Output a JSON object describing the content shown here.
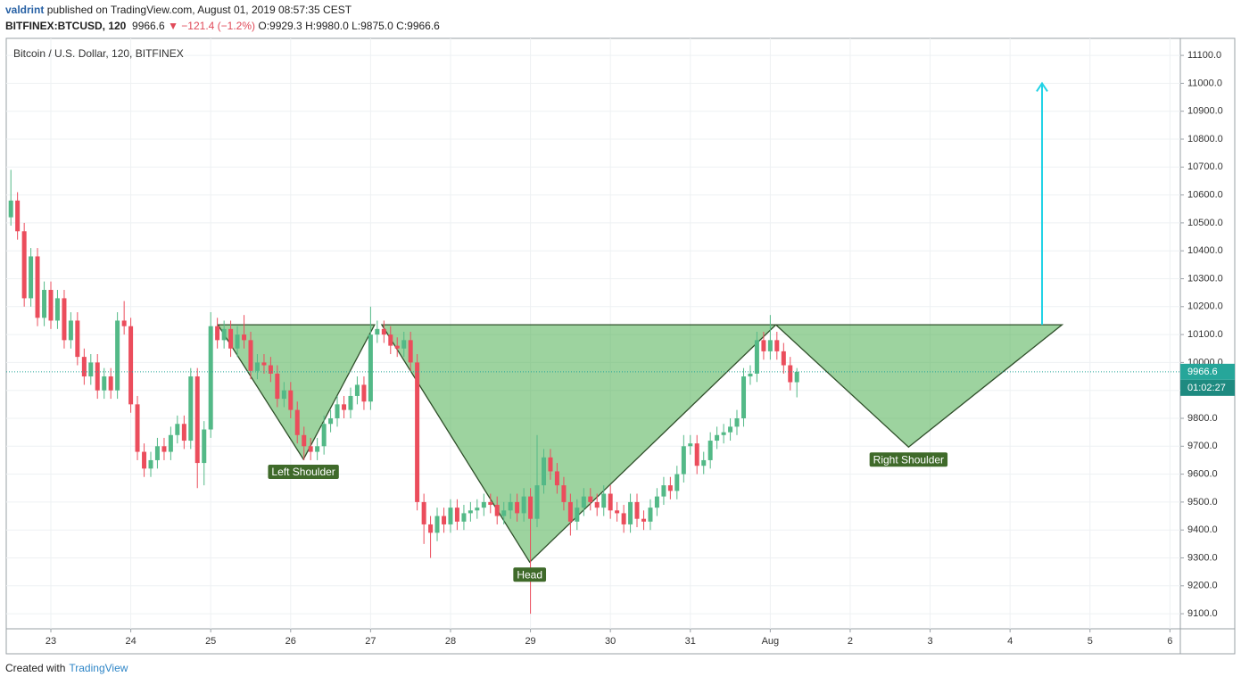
{
  "header": {
    "author": "valdrint",
    "published": "published on TradingView.com, August 01, 2019 08:57:35 CEST",
    "symbol": "BITFINEX:BTCUSD, 120",
    "last": "9966.6",
    "change": "▼ −121.4 (−1.2%)",
    "ohlc": "O:9929.3 H:9980.0 L:9875.0 C:9966.6"
  },
  "footer": {
    "created": "Created with",
    "brand": "TradingView"
  },
  "chart_data": {
    "type": "candlestick",
    "title": "Bitcoin / U.S. Dollar, 120, BITFINEX",
    "up_color": "#53b987",
    "down_color": "#eb4d5c",
    "grid": true,
    "countdown": "01:02:27",
    "last_label": "9966.6",
    "xlim": [
      -0.558,
      14.13
    ],
    "ylim": [
      9046,
      11161
    ],
    "xticks": [
      {
        "value": 0,
        "label": "23"
      },
      {
        "value": 1,
        "label": "24"
      },
      {
        "value": 2,
        "label": "25"
      },
      {
        "value": 3,
        "label": "26"
      },
      {
        "value": 4,
        "label": "27"
      },
      {
        "value": 5,
        "label": "28"
      },
      {
        "value": 6,
        "label": "29"
      },
      {
        "value": 7,
        "label": "30"
      },
      {
        "value": 8,
        "label": "31"
      },
      {
        "value": 9,
        "label": "Aug"
      },
      {
        "value": 10,
        "label": "2"
      },
      {
        "value": 11,
        "label": "3"
      },
      {
        "value": 12,
        "label": "4"
      },
      {
        "value": 13,
        "label": "5"
      },
      {
        "value": 14,
        "label": "6"
      }
    ],
    "yticks": [
      {
        "value": 9100,
        "label": "9100.0"
      },
      {
        "value": 9200,
        "label": "9200.0"
      },
      {
        "value": 9300,
        "label": "9300.0"
      },
      {
        "value": 9400,
        "label": "9400.0"
      },
      {
        "value": 9500,
        "label": "9500.0"
      },
      {
        "value": 9600,
        "label": "9600.0"
      },
      {
        "value": 9700,
        "label": "9700.0"
      },
      {
        "value": 9800,
        "label": "9800.0"
      },
      {
        "value": 9900,
        "label": "9900.0"
      },
      {
        "value": 10000,
        "label": "10000.0"
      },
      {
        "value": 10100,
        "label": "10100.0"
      },
      {
        "value": 10200,
        "label": "10200.0"
      },
      {
        "value": 10300,
        "label": "10300.0"
      },
      {
        "value": 10400,
        "label": "10400.0"
      },
      {
        "value": 10500,
        "label": "10500.0"
      },
      {
        "value": 10600,
        "label": "10600.0"
      },
      {
        "value": 10700,
        "label": "10700.0"
      },
      {
        "value": 10800,
        "label": "10800.0"
      },
      {
        "value": 10900,
        "label": "10900.0"
      },
      {
        "value": 11000,
        "label": "11000.0"
      },
      {
        "value": 11100,
        "label": "11100.0"
      }
    ],
    "x": [
      -0.5,
      -0.417,
      -0.333,
      -0.25,
      -0.167,
      -0.083,
      0,
      0.083,
      0.167,
      0.25,
      0.333,
      0.417,
      0.5,
      0.583,
      0.667,
      0.75,
      0.833,
      0.917,
      1,
      1.083,
      1.167,
      1.25,
      1.333,
      1.417,
      1.5,
      1.583,
      1.667,
      1.75,
      1.833,
      1.917,
      2,
      2.083,
      2.167,
      2.25,
      2.333,
      2.417,
      2.5,
      2.583,
      2.667,
      2.75,
      2.833,
      2.917,
      3,
      3.083,
      3.167,
      3.25,
      3.333,
      3.417,
      3.5,
      3.583,
      3.667,
      3.75,
      3.833,
      3.917,
      4,
      4.083,
      4.167,
      4.25,
      4.333,
      4.417,
      4.5,
      4.583,
      4.667,
      4.75,
      4.833,
      4.917,
      5,
      5.083,
      5.167,
      5.25,
      5.333,
      5.417,
      5.5,
      5.583,
      5.667,
      5.75,
      5.833,
      5.917,
      6,
      6.083,
      6.167,
      6.25,
      6.333,
      6.417,
      6.5,
      6.583,
      6.667,
      6.75,
      6.833,
      6.917,
      7,
      7.083,
      7.167,
      7.25,
      7.333,
      7.417,
      7.5,
      7.583,
      7.667,
      7.75,
      7.833,
      7.917,
      8,
      8.083,
      8.167,
      8.25,
      8.333,
      8.417,
      8.5,
      8.583,
      8.667,
      8.75,
      8.833,
      8.917,
      9,
      9.083,
      9.167,
      9.25,
      9.333
    ],
    "open": [
      10520,
      10580,
      10470,
      10230,
      10380,
      10160,
      10260,
      10150,
      10230,
      10080,
      10150,
      10020,
      9950,
      10000,
      9900,
      9950,
      9900,
      10150,
      10130,
      9850,
      9680,
      9620,
      9650,
      9700,
      9680,
      9740,
      9780,
      9720,
      9950,
      9640,
      9760,
      10130,
      10080,
      10120,
      10050,
      10100,
      10080,
      9970,
      10000,
      9990,
      9960,
      9870,
      9900,
      9830,
      9740,
      9700,
      9680,
      9700,
      9780,
      9800,
      9850,
      9830,
      9880,
      9920,
      9860,
      10100,
      10120,
      10100,
      10060,
      10050,
      10080,
      10000,
      9500,
      9420,
      9390,
      9450,
      9420,
      9480,
      9430,
      9460,
      9470,
      9480,
      9500,
      9490,
      9450,
      9470,
      9500,
      9460,
      9520,
      9440,
      9560,
      9660,
      9610,
      9560,
      9500,
      9430,
      9480,
      9520,
      9500,
      9480,
      9530,
      9470,
      9460,
      9420,
      9500,
      9440,
      9430,
      9480,
      9520,
      9560,
      9540,
      9600,
      9700,
      9710,
      9630,
      9650,
      9720,
      9740,
      9750,
      9770,
      9800,
      9950,
      9960,
      10080,
      10040,
      10080,
      10040,
      9990,
      9929.3
    ],
    "high": [
      10690,
      10610,
      10500,
      10410,
      10410,
      10290,
      10290,
      10260,
      10260,
      10180,
      10180,
      10050,
      10030,
      10030,
      9980,
      9980,
      10180,
      10220,
      10160,
      9880,
      9710,
      9680,
      9730,
      9730,
      9770,
      9810,
      9810,
      9980,
      9980,
      9790,
      10180,
      10160,
      10150,
      10150,
      10130,
      10170,
      10110,
      10030,
      10030,
      10020,
      9990,
      9930,
      9930,
      9860,
      9770,
      9730,
      9730,
      9810,
      9830,
      9880,
      9880,
      9910,
      9950,
      9950,
      10200,
      10150,
      10150,
      10130,
      10090,
      10110,
      10110,
      10030,
      9530,
      9450,
      9480,
      9480,
      9510,
      9510,
      9490,
      9500,
      9510,
      9530,
      9530,
      9520,
      9500,
      9530,
      9530,
      9550,
      9550,
      9740,
      9690,
      9690,
      9640,
      9590,
      9530,
      9510,
      9550,
      9550,
      9530,
      9560,
      9560,
      9500,
      9490,
      9530,
      9530,
      9470,
      9510,
      9550,
      9590,
      9590,
      9630,
      9740,
      9740,
      9740,
      9680,
      9750,
      9770,
      9780,
      9800,
      9830,
      9980,
      9990,
      10110,
      10110,
      10170,
      10110,
      10070,
      10020,
      9980
    ],
    "low": [
      10490,
      10440,
      10200,
      10200,
      10130,
      10130,
      10120,
      10120,
      10050,
      10050,
      9990,
      9920,
      9920,
      9870,
      9870,
      9870,
      9870,
      10100,
      9820,
      9650,
      9590,
      9590,
      9620,
      9650,
      9650,
      9710,
      9690,
      9690,
      9550,
      9560,
      9730,
      10050,
      10050,
      10020,
      10020,
      10050,
      9940,
      9940,
      9960,
      9930,
      9840,
      9840,
      9800,
      9710,
      9650,
      9650,
      9650,
      9670,
      9750,
      9770,
      9800,
      9800,
      9850,
      9830,
      9830,
      10070,
      10070,
      10030,
      10020,
      10020,
      9970,
      9470,
      9350,
      9300,
      9360,
      9390,
      9390,
      9400,
      9400,
      9430,
      9440,
      9450,
      9460,
      9420,
      9420,
      9440,
      9430,
      9430,
      9100,
      9410,
      9530,
      9580,
      9530,
      9470,
      9380,
      9400,
      9450,
      9470,
      9450,
      9450,
      9440,
      9430,
      9390,
      9390,
      9410,
      9400,
      9400,
      9450,
      9490,
      9510,
      9510,
      9570,
      9670,
      9600,
      9600,
      9620,
      9690,
      9710,
      9720,
      9740,
      9770,
      9920,
      9930,
      10010,
      10010,
      10010,
      9960,
      9900,
      9875
    ],
    "close": [
      10580,
      10470,
      10230,
      10380,
      10160,
      10260,
      10150,
      10230,
      10080,
      10150,
      10020,
      9950,
      10000,
      9900,
      9950,
      9900,
      10150,
      10130,
      9850,
      9680,
      9620,
      9650,
      9700,
      9680,
      9740,
      9780,
      9720,
      9950,
      9640,
      9760,
      10130,
      10080,
      10120,
      10050,
      10100,
      10080,
      9970,
      10000,
      9990,
      9960,
      9870,
      9900,
      9830,
      9740,
      9700,
      9680,
      9700,
      9780,
      9800,
      9850,
      9830,
      9880,
      9920,
      9860,
      10100,
      10120,
      10100,
      10060,
      10050,
      10080,
      10000,
      9500,
      9420,
      9390,
      9450,
      9420,
      9480,
      9430,
      9460,
      9470,
      9480,
      9500,
      9490,
      9450,
      9470,
      9500,
      9460,
      9520,
      9440,
      9560,
      9660,
      9610,
      9560,
      9500,
      9430,
      9480,
      9520,
      9500,
      9480,
      9530,
      9470,
      9460,
      9420,
      9500,
      9440,
      9430,
      9480,
      9520,
      9560,
      9540,
      9600,
      9700,
      9710,
      9630,
      9650,
      9720,
      9740,
      9750,
      9770,
      9800,
      9950,
      9960,
      10080,
      10040,
      10080,
      10040,
      9990,
      9929.3,
      9966.6
    ],
    "patterns": [
      {
        "label": "Left Shoulder",
        "points": [
          [
            2.09,
            10135
          ],
          [
            3.16,
            9653
          ],
          [
            4.05,
            10135
          ]
        ]
      },
      {
        "label": "Head",
        "points": [
          [
            4.14,
            10135
          ],
          [
            5.99,
            9285
          ],
          [
            9.07,
            10135
          ]
        ]
      },
      {
        "label": "Right Shoulder",
        "points": [
          [
            9.07,
            10135
          ],
          [
            10.73,
            9697
          ],
          [
            12.65,
            10135
          ]
        ]
      }
    ],
    "target_arrow": {
      "x": 12.4,
      "from": 10135,
      "to": 11000,
      "color": "#22d3e6"
    }
  }
}
